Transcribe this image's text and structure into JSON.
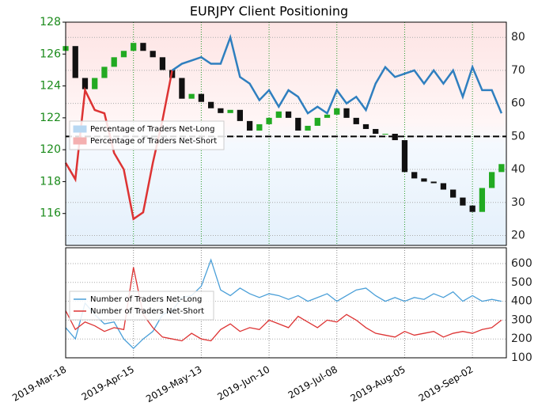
{
  "chart_data": [
    {
      "type": "candlestick",
      "title": "EURJPY Client Positioning",
      "x": [
        "2019-03-18",
        "2019-03-22",
        "2019-03-26",
        "2019-03-30",
        "2019-04-03",
        "2019-04-07",
        "2019-04-11",
        "2019-04-15",
        "2019-04-19",
        "2019-04-23",
        "2019-04-27",
        "2019-05-01",
        "2019-05-05",
        "2019-05-09",
        "2019-05-13",
        "2019-05-17",
        "2019-05-21",
        "2019-05-25",
        "2019-05-29",
        "2019-06-02",
        "2019-06-06",
        "2019-06-10",
        "2019-06-14",
        "2019-06-18",
        "2019-06-22",
        "2019-06-26",
        "2019-06-30",
        "2019-07-04",
        "2019-07-08",
        "2019-07-12",
        "2019-07-16",
        "2019-07-20",
        "2019-07-24",
        "2019-07-28",
        "2019-08-01",
        "2019-08-05",
        "2019-08-09",
        "2019-08-13",
        "2019-08-17",
        "2019-08-21",
        "2019-08-25",
        "2019-08-29",
        "2019-09-02",
        "2019-09-06",
        "2019-09-10",
        "2019-09-14"
      ],
      "open": [
        126.2,
        126.5,
        124.5,
        123.8,
        124.5,
        125.2,
        125.8,
        126.2,
        126.7,
        126.2,
        125.8,
        125,
        124.5,
        123.2,
        123.5,
        123,
        122.6,
        122.3,
        122.5,
        121.8,
        121.2,
        121.6,
        122,
        122.4,
        122,
        121.2,
        121.5,
        122,
        122.2,
        122.6,
        122,
        121.6,
        121.3,
        121,
        121,
        120.6,
        118.6,
        118.2,
        118,
        117.9,
        117.5,
        117,
        116.5,
        116.1,
        117.6,
        118.6
      ],
      "close": [
        126.5,
        124.5,
        123.8,
        124.5,
        125.2,
        125.8,
        126.2,
        126.7,
        126.2,
        125.8,
        125,
        124.5,
        123.2,
        123.5,
        123,
        122.6,
        122.3,
        122.5,
        121.8,
        121.2,
        121.6,
        122,
        122.4,
        122,
        121.2,
        121.5,
        122,
        122.2,
        122.6,
        122,
        121.6,
        121.3,
        121,
        121,
        120.6,
        118.6,
        118.2,
        118,
        117.9,
        117.5,
        117,
        116.5,
        116.1,
        117.6,
        118.6,
        119.1
      ],
      "up_color": "#22aa22",
      "down_color": "#111111",
      "xlim": [
        "2019-03-18",
        "2019-09-16"
      ],
      "ylim": [
        114,
        128
      ],
      "yticks": [
        116,
        118,
        120,
        122,
        124,
        126,
        128
      ],
      "y2lim": [
        17,
        84.6
      ],
      "y2ticks": [
        20,
        30,
        40,
        50,
        60,
        70,
        80
      ],
      "reference_line": 50,
      "series": [
        {
          "axis": "y2",
          "values": [
            42,
            37,
            64,
            58,
            57,
            45,
            40,
            25,
            27,
            42,
            55,
            70,
            72,
            73,
            74,
            72,
            72,
            80,
            68,
            66,
            61,
            64,
            59,
            64,
            62,
            57,
            59,
            57,
            64,
            60,
            62,
            58,
            66,
            71,
            68,
            69,
            70,
            66,
            70,
            66,
            70,
            62,
            71,
            64,
            64,
            57
          ],
          "colors": [
            "#dd3333",
            "#dd3333",
            "#dd3333",
            "#dd3333",
            "#dd3333",
            "#dd3333",
            "#dd3333",
            "#dd3333",
            "#dd3333",
            "#dd3333",
            "#dd3333",
            "#2f7fbf",
            "#2f7fbf",
            "#2f7fbf",
            "#2f7fbf",
            "#2f7fbf",
            "#2f7fbf",
            "#2f7fbf",
            "#2f7fbf",
            "#2f7fbf",
            "#2f7fbf",
            "#2f7fbf",
            "#2f7fbf",
            "#2f7fbf",
            "#2f7fbf",
            "#2f7fbf",
            "#2f7fbf",
            "#2f7fbf",
            "#2f7fbf",
            "#2f7fbf",
            "#2f7fbf",
            "#2f7fbf",
            "#2f7fbf",
            "#2f7fbf",
            "#2f7fbf",
            "#2f7fbf",
            "#2f7fbf",
            "#2f7fbf",
            "#2f7fbf",
            "#2f7fbf",
            "#2f7fbf",
            "#2f7fbf",
            "#2f7fbf",
            "#2f7fbf",
            "#2f7fbf",
            "#2f7fbf"
          ]
        }
      ],
      "legend": [
        {
          "name": "Percentage of Traders Net-Long",
          "color": "#b8d8f2"
        },
        {
          "name": "Percentage of Traders Net-Short",
          "color": "#f4b0b0"
        }
      ],
      "legend_position": "left"
    },
    {
      "type": "line",
      "xticks": [
        {
          "value": "2019-03-18",
          "label": "2019-Mar-18"
        },
        {
          "value": "2019-04-15",
          "label": "2019-Apr-15"
        },
        {
          "value": "2019-05-13",
          "label": "2019-May-13"
        },
        {
          "value": "2019-06-10",
          "label": "2019-Jun-10"
        },
        {
          "value": "2019-07-08",
          "label": "2019-Jul-08"
        },
        {
          "value": "2019-08-05",
          "label": "2019-Aug-05"
        },
        {
          "value": "2019-09-02",
          "label": "2019-Sep-02"
        }
      ],
      "y2lim": [
        100,
        684
      ],
      "y2ticks": [
        100,
        200,
        300,
        400,
        500,
        600
      ],
      "series": [
        {
          "name": "Number of Traders Net-Long",
          "color": "#4a9fd8",
          "values": [
            260,
            200,
            390,
            330,
            280,
            290,
            200,
            150,
            200,
            240,
            330,
            350,
            420,
            430,
            480,
            620,
            460,
            430,
            470,
            440,
            420,
            440,
            430,
            410,
            430,
            400,
            420,
            440,
            400,
            430,
            460,
            470,
            430,
            400,
            420,
            400,
            420,
            410,
            440,
            420,
            450,
            400,
            430,
            400,
            410,
            400
          ]
        },
        {
          "name": "Number of Traders Net-Short",
          "color": "#dd3333",
          "values": [
            350,
            250,
            290,
            270,
            240,
            260,
            250,
            580,
            330,
            260,
            210,
            200,
            190,
            230,
            200,
            190,
            250,
            280,
            240,
            260,
            250,
            300,
            280,
            260,
            320,
            290,
            260,
            300,
            290,
            330,
            300,
            260,
            230,
            220,
            210,
            240,
            220,
            230,
            240,
            210,
            230,
            240,
            230,
            250,
            260,
            300
          ]
        }
      ],
      "legend_position": "left"
    }
  ]
}
